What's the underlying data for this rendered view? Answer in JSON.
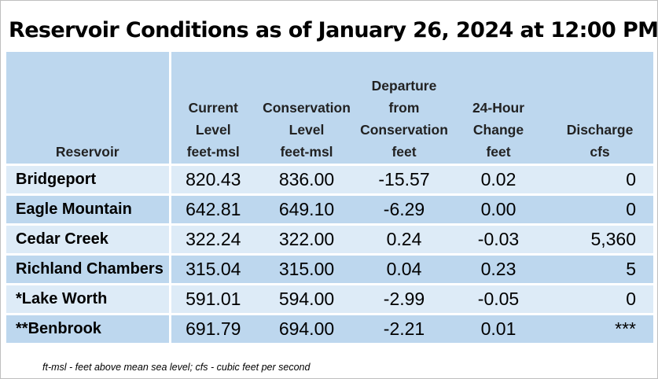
{
  "title": "Reservoir Conditions as of January 26, 2024 at 12:00 PM",
  "table": {
    "headers": {
      "reservoir": [
        "Reservoir"
      ],
      "current": [
        "Current",
        "Level",
        "feet-msl"
      ],
      "conservation": [
        "Conservation",
        "Level",
        "feet-msl"
      ],
      "departure": [
        "Departure",
        "from",
        "Conservation",
        "feet"
      ],
      "change": [
        "24-Hour",
        "Change",
        "feet"
      ],
      "discharge": [
        "Discharge",
        "cfs"
      ]
    },
    "rows": [
      {
        "name": "Bridgeport",
        "current": "820.43",
        "conservation": "836.00",
        "departure": "-15.57",
        "change": "0.02",
        "discharge": "0"
      },
      {
        "name": "Eagle Mountain",
        "current": "642.81",
        "conservation": "649.10",
        "departure": "-6.29",
        "change": "0.00",
        "discharge": "0"
      },
      {
        "name": "Cedar Creek",
        "current": "322.24",
        "conservation": "322.00",
        "departure": "0.24",
        "change": "-0.03",
        "discharge": "5,360"
      },
      {
        "name": "Richland Chambers",
        "current": "315.04",
        "conservation": "315.00",
        "departure": "0.04",
        "change": "0.23",
        "discharge": "5"
      },
      {
        "name": "*Lake Worth",
        "current": "591.01",
        "conservation": "594.00",
        "departure": "-2.99",
        "change": "-0.05",
        "discharge": "0"
      },
      {
        "name": "**Benbrook",
        "current": "691.79",
        "conservation": "694.00",
        "departure": "-2.21",
        "change": "0.01",
        "discharge": "***"
      }
    ]
  },
  "footnote": "ft-msl - feet above mean sea level; cfs - cubic feet per second",
  "colors": {
    "header_bg": "#bdd7ee",
    "row_light": "#ddebf7",
    "row_dark": "#bdd7ee"
  }
}
